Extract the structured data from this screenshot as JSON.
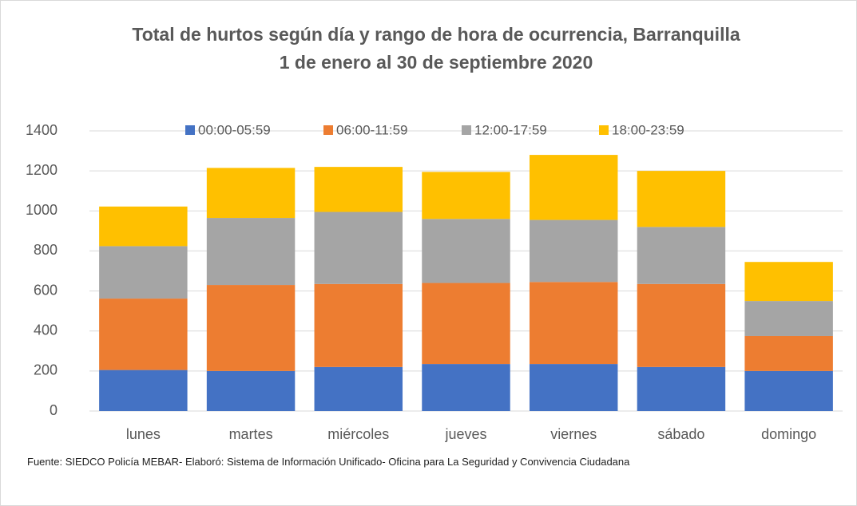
{
  "chart_data": {
    "type": "stacked_bar",
    "title": "Total de hurtos según día y rango de hora de ocurrencia, Barranquilla",
    "subtitle": "1 de enero al 30 de septiembre 2020",
    "categories": [
      "lunes",
      "martes",
      "miércoles",
      "jueves",
      "viernes",
      "sábado",
      "domingo"
    ],
    "series": [
      {
        "name": "00:00-05:59",
        "color": "#4472c4",
        "values": [
          205,
          200,
          220,
          235,
          235,
          220,
          200
        ]
      },
      {
        "name": "06:00-11:59",
        "color": "#ed7d31",
        "values": [
          357,
          430,
          415,
          405,
          410,
          415,
          175
        ]
      },
      {
        "name": "12:00-17:59",
        "color": "#a5a5a5",
        "values": [
          262,
          335,
          360,
          320,
          310,
          285,
          175
        ]
      },
      {
        "name": "18:00-23:59",
        "color": "#ffc000",
        "values": [
          198,
          250,
          225,
          235,
          325,
          280,
          195
        ]
      }
    ],
    "ylim": [
      0,
      1400
    ],
    "yticks": [
      0,
      200,
      400,
      600,
      800,
      1000,
      1200,
      1400
    ],
    "grid": true,
    "legend": "top",
    "source": "Fuente:  SIEDCO Policía MEBAR- Elaboró: Sistema de Información Unificado- Oficina para La Seguridad y Convivencia Ciudadana"
  }
}
